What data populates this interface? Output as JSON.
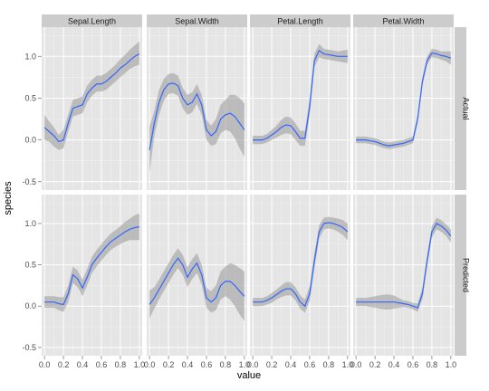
{
  "chart_data": {
    "type": "line",
    "xlabel": "value",
    "ylabel": "species",
    "xlim": [
      -0.03,
      1.03
    ],
    "ylim": [
      -0.6,
      1.35
    ],
    "x_ticks": [
      "0.0",
      "0.2",
      "0.4",
      "0.6",
      "0.8",
      "1.0"
    ],
    "x_tick_values": [
      0,
      0.2,
      0.4,
      0.6,
      0.8,
      1.0
    ],
    "y_ticks": [
      "-0.5",
      "0.0",
      "0.5",
      "1.0"
    ],
    "y_tick_values": [
      -0.5,
      0,
      0.5,
      1.0
    ],
    "columns": [
      "Sepal.Length",
      "Sepal.Width",
      "Petal.Length",
      "Petal.Width"
    ],
    "rows": [
      "Actual",
      "Predicted"
    ],
    "grid": true,
    "colors": {
      "panel_bg": "#e5e5e5",
      "grid_major": "#ffffff",
      "grid_minor": "#f2f2f2",
      "strip_bg": "#cccccc",
      "line": "#3366ff",
      "ribbon": "#999999"
    },
    "panels": [
      {
        "row": "Actual",
        "column": "Sepal.Length",
        "x": [
          0,
          0.05,
          0.1,
          0.15,
          0.2,
          0.25,
          0.3,
          0.35,
          0.4,
          0.45,
          0.5,
          0.55,
          0.6,
          0.65,
          0.7,
          0.75,
          0.8,
          0.85,
          0.9,
          0.95,
          1.0
        ],
        "y": [
          0.15,
          0.1,
          0.05,
          -0.02,
          0.0,
          0.2,
          0.38,
          0.4,
          0.42,
          0.55,
          0.62,
          0.67,
          0.67,
          0.7,
          0.75,
          0.8,
          0.86,
          0.9,
          0.95,
          1.0,
          1.03
        ],
        "lower": [
          0.0,
          -0.02,
          -0.08,
          -0.12,
          -0.1,
          0.1,
          0.28,
          0.3,
          0.32,
          0.45,
          0.53,
          0.58,
          0.58,
          0.6,
          0.65,
          0.7,
          0.75,
          0.8,
          0.85,
          0.88,
          0.9
        ],
        "upper": [
          0.3,
          0.22,
          0.15,
          0.06,
          0.12,
          0.3,
          0.48,
          0.5,
          0.52,
          0.65,
          0.72,
          0.77,
          0.77,
          0.8,
          0.85,
          0.9,
          0.97,
          1.02,
          1.08,
          1.13,
          1.18
        ]
      },
      {
        "row": "Actual",
        "column": "Sepal.Width",
        "x": [
          0,
          0.05,
          0.1,
          0.15,
          0.2,
          0.25,
          0.3,
          0.35,
          0.4,
          0.45,
          0.5,
          0.55,
          0.6,
          0.65,
          0.7,
          0.75,
          0.8,
          0.85,
          0.9,
          0.95,
          1.0
        ],
        "y": [
          -0.12,
          0.2,
          0.45,
          0.6,
          0.67,
          0.68,
          0.65,
          0.5,
          0.42,
          0.45,
          0.55,
          0.42,
          0.12,
          0.05,
          0.1,
          0.25,
          0.3,
          0.32,
          0.28,
          0.2,
          0.12
        ],
        "lower": [
          -0.4,
          0.05,
          0.3,
          0.47,
          0.55,
          0.56,
          0.53,
          0.38,
          0.3,
          0.33,
          0.43,
          0.3,
          0.0,
          -0.07,
          -0.05,
          0.08,
          0.12,
          0.1,
          0.02,
          -0.1,
          -0.2
        ],
        "upper": [
          0.16,
          0.35,
          0.6,
          0.73,
          0.79,
          0.8,
          0.77,
          0.62,
          0.54,
          0.57,
          0.67,
          0.54,
          0.24,
          0.17,
          0.25,
          0.42,
          0.48,
          0.54,
          0.54,
          0.5,
          0.44
        ]
      },
      {
        "row": "Actual",
        "column": "Petal.Length",
        "x": [
          0,
          0.05,
          0.1,
          0.15,
          0.2,
          0.25,
          0.3,
          0.35,
          0.4,
          0.45,
          0.5,
          0.55,
          0.6,
          0.65,
          0.7,
          0.75,
          0.8,
          0.85,
          0.9,
          0.95,
          1.0
        ],
        "y": [
          0.0,
          0.0,
          0.0,
          0.02,
          0.06,
          0.1,
          0.15,
          0.18,
          0.17,
          0.1,
          0.02,
          0.02,
          0.4,
          0.95,
          1.07,
          1.03,
          1.02,
          1.01,
          1.0,
          1.0,
          1.0
        ],
        "lower": [
          -0.05,
          -0.05,
          -0.05,
          -0.03,
          0.0,
          0.03,
          0.06,
          0.08,
          0.07,
          0.0,
          -0.07,
          -0.07,
          0.3,
          0.87,
          0.99,
          0.97,
          0.96,
          0.95,
          0.94,
          0.93,
          0.92
        ],
        "upper": [
          0.05,
          0.05,
          0.05,
          0.07,
          0.12,
          0.17,
          0.24,
          0.28,
          0.27,
          0.2,
          0.11,
          0.11,
          0.5,
          1.03,
          1.15,
          1.09,
          1.08,
          1.07,
          1.06,
          1.07,
          1.08
        ]
      },
      {
        "row": "Actual",
        "column": "Petal.Width",
        "x": [
          0,
          0.05,
          0.1,
          0.15,
          0.2,
          0.25,
          0.3,
          0.35,
          0.4,
          0.45,
          0.5,
          0.55,
          0.6,
          0.65,
          0.7,
          0.75,
          0.8,
          0.85,
          0.9,
          0.95,
          1.0
        ],
        "y": [
          0.0,
          0.0,
          0.0,
          -0.01,
          -0.02,
          -0.04,
          -0.06,
          -0.07,
          -0.06,
          -0.05,
          -0.04,
          -0.02,
          0.0,
          0.25,
          0.7,
          0.95,
          1.04,
          1.03,
          1.01,
          1.0,
          0.98
        ],
        "lower": [
          -0.04,
          -0.04,
          -0.04,
          -0.05,
          -0.06,
          -0.08,
          -0.1,
          -0.11,
          -0.1,
          -0.09,
          -0.08,
          -0.06,
          -0.04,
          0.2,
          0.65,
          0.9,
          0.99,
          0.98,
          0.96,
          0.94,
          0.9
        ],
        "upper": [
          0.04,
          0.04,
          0.04,
          0.03,
          0.02,
          0.0,
          -0.02,
          -0.03,
          -0.02,
          -0.01,
          0.0,
          0.02,
          0.04,
          0.3,
          0.75,
          1.0,
          1.09,
          1.08,
          1.06,
          1.06,
          1.06
        ]
      },
      {
        "row": "Predicted",
        "column": "Sepal.Length",
        "x": [
          0,
          0.05,
          0.1,
          0.15,
          0.2,
          0.25,
          0.3,
          0.35,
          0.4,
          0.45,
          0.5,
          0.55,
          0.6,
          0.65,
          0.7,
          0.75,
          0.8,
          0.85,
          0.9,
          0.95,
          1.0
        ],
        "y": [
          0.05,
          0.05,
          0.05,
          0.03,
          0.02,
          0.15,
          0.38,
          0.33,
          0.22,
          0.35,
          0.5,
          0.58,
          0.65,
          0.72,
          0.78,
          0.82,
          0.86,
          0.9,
          0.93,
          0.95,
          0.96
        ],
        "lower": [
          -0.02,
          -0.02,
          -0.02,
          -0.05,
          -0.07,
          0.05,
          0.28,
          0.23,
          0.12,
          0.25,
          0.4,
          0.48,
          0.55,
          0.62,
          0.68,
          0.72,
          0.75,
          0.78,
          0.8,
          0.8,
          0.8
        ],
        "upper": [
          0.12,
          0.12,
          0.12,
          0.11,
          0.11,
          0.25,
          0.48,
          0.43,
          0.32,
          0.45,
          0.6,
          0.68,
          0.75,
          0.82,
          0.88,
          0.92,
          0.97,
          1.02,
          1.06,
          1.1,
          1.12
        ]
      },
      {
        "row": "Predicted",
        "column": "Sepal.Width",
        "x": [
          0,
          0.05,
          0.1,
          0.15,
          0.2,
          0.25,
          0.3,
          0.35,
          0.4,
          0.45,
          0.5,
          0.55,
          0.6,
          0.65,
          0.7,
          0.75,
          0.8,
          0.85,
          0.9,
          0.95,
          1.0
        ],
        "y": [
          0.02,
          0.1,
          0.2,
          0.3,
          0.4,
          0.5,
          0.58,
          0.5,
          0.35,
          0.45,
          0.52,
          0.38,
          0.1,
          0.05,
          0.1,
          0.25,
          0.3,
          0.3,
          0.25,
          0.18,
          0.12
        ],
        "lower": [
          -0.15,
          -0.03,
          0.08,
          0.18,
          0.28,
          0.38,
          0.46,
          0.38,
          0.23,
          0.33,
          0.4,
          0.26,
          -0.02,
          -0.08,
          -0.05,
          0.08,
          0.12,
          0.08,
          0.0,
          -0.1,
          -0.18
        ],
        "upper": [
          0.19,
          0.23,
          0.32,
          0.42,
          0.52,
          0.62,
          0.7,
          0.62,
          0.47,
          0.57,
          0.64,
          0.5,
          0.22,
          0.18,
          0.25,
          0.42,
          0.48,
          0.52,
          0.5,
          0.46,
          0.42
        ]
      },
      {
        "row": "Predicted",
        "column": "Petal.Length",
        "x": [
          0,
          0.05,
          0.1,
          0.15,
          0.2,
          0.25,
          0.3,
          0.35,
          0.4,
          0.45,
          0.5,
          0.55,
          0.6,
          0.65,
          0.7,
          0.75,
          0.8,
          0.85,
          0.9,
          0.95,
          1.0
        ],
        "y": [
          0.05,
          0.05,
          0.05,
          0.07,
          0.1,
          0.14,
          0.18,
          0.21,
          0.21,
          0.15,
          0.05,
          0.0,
          0.15,
          0.55,
          0.9,
          1.0,
          1.01,
          1.0,
          0.98,
          0.95,
          0.9
        ],
        "lower": [
          0.0,
          0.0,
          0.0,
          0.02,
          0.04,
          0.08,
          0.11,
          0.13,
          0.13,
          0.07,
          -0.03,
          -0.08,
          0.06,
          0.46,
          0.82,
          0.93,
          0.94,
          0.93,
          0.9,
          0.86,
          0.8
        ],
        "upper": [
          0.1,
          0.1,
          0.1,
          0.12,
          0.16,
          0.2,
          0.25,
          0.29,
          0.29,
          0.23,
          0.13,
          0.08,
          0.24,
          0.64,
          0.98,
          1.07,
          1.08,
          1.07,
          1.06,
          1.04,
          1.0
        ]
      },
      {
        "row": "Predicted",
        "column": "Petal.Width",
        "x": [
          0,
          0.05,
          0.1,
          0.15,
          0.2,
          0.25,
          0.3,
          0.35,
          0.4,
          0.45,
          0.5,
          0.55,
          0.6,
          0.65,
          0.7,
          0.75,
          0.8,
          0.85,
          0.9,
          0.95,
          1.0
        ],
        "y": [
          0.05,
          0.05,
          0.05,
          0.05,
          0.05,
          0.05,
          0.05,
          0.05,
          0.05,
          0.04,
          0.03,
          0.02,
          0.0,
          -0.02,
          0.15,
          0.55,
          0.9,
          1.0,
          0.97,
          0.92,
          0.85
        ],
        "lower": [
          0.0,
          0.0,
          0.0,
          -0.01,
          -0.02,
          -0.03,
          -0.04,
          -0.04,
          -0.03,
          -0.02,
          -0.01,
          -0.02,
          -0.04,
          -0.07,
          0.08,
          0.48,
          0.83,
          0.93,
          0.9,
          0.85,
          0.77
        ],
        "upper": [
          0.1,
          0.1,
          0.1,
          0.11,
          0.12,
          0.13,
          0.14,
          0.14,
          0.13,
          0.1,
          0.07,
          0.06,
          0.04,
          0.03,
          0.22,
          0.62,
          0.97,
          1.07,
          1.04,
          0.99,
          0.93
        ]
      }
    ]
  }
}
